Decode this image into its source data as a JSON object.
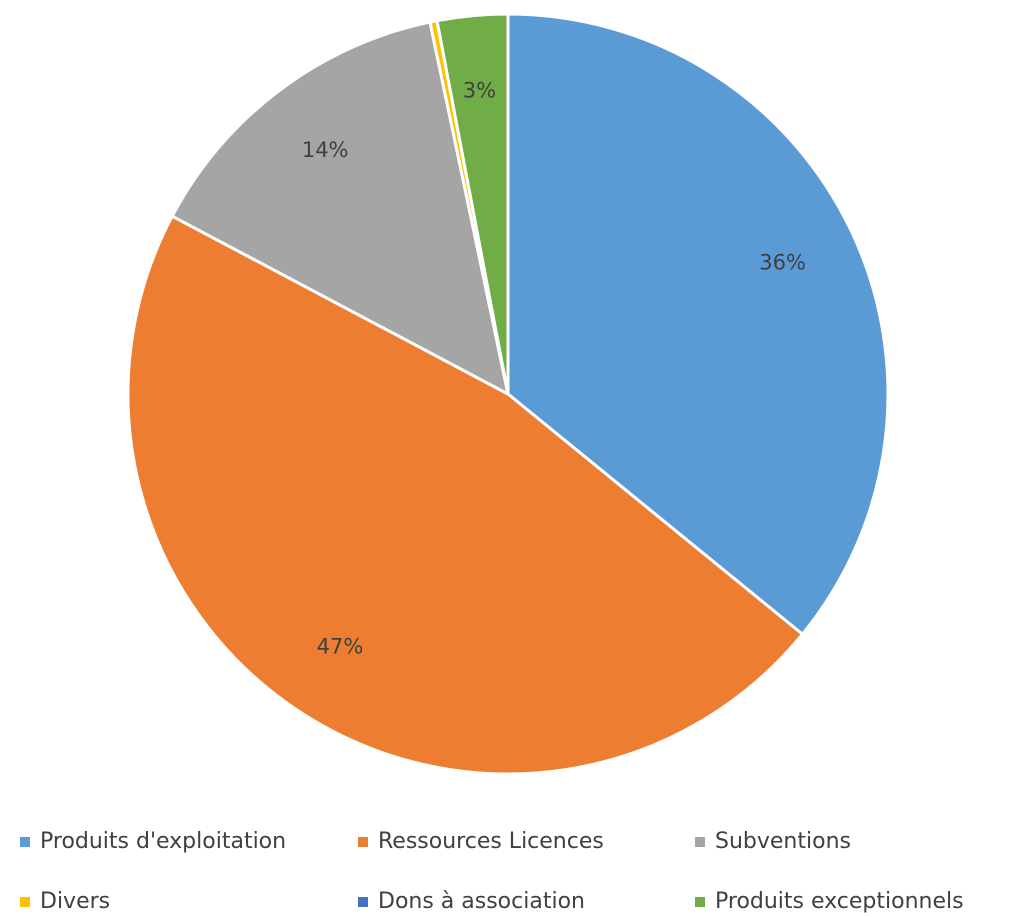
{
  "chart_data": {
    "type": "pie",
    "categories": [
      "Produits d'exploitation",
      "Ressources Licences",
      "Subventions",
      "Divers",
      "Dons à association",
      "Produits exceptionnels"
    ],
    "values": [
      36,
      47,
      14,
      0.3,
      0,
      3
    ],
    "value_labels": [
      "36%",
      "47%",
      "14%",
      null,
      null,
      "3%"
    ],
    "colors": [
      "#5b9bd5",
      "#ed7d31",
      "#a5a5a5",
      "#ffc000",
      "#4472c4",
      "#70ad47"
    ],
    "legend": "bottom"
  }
}
